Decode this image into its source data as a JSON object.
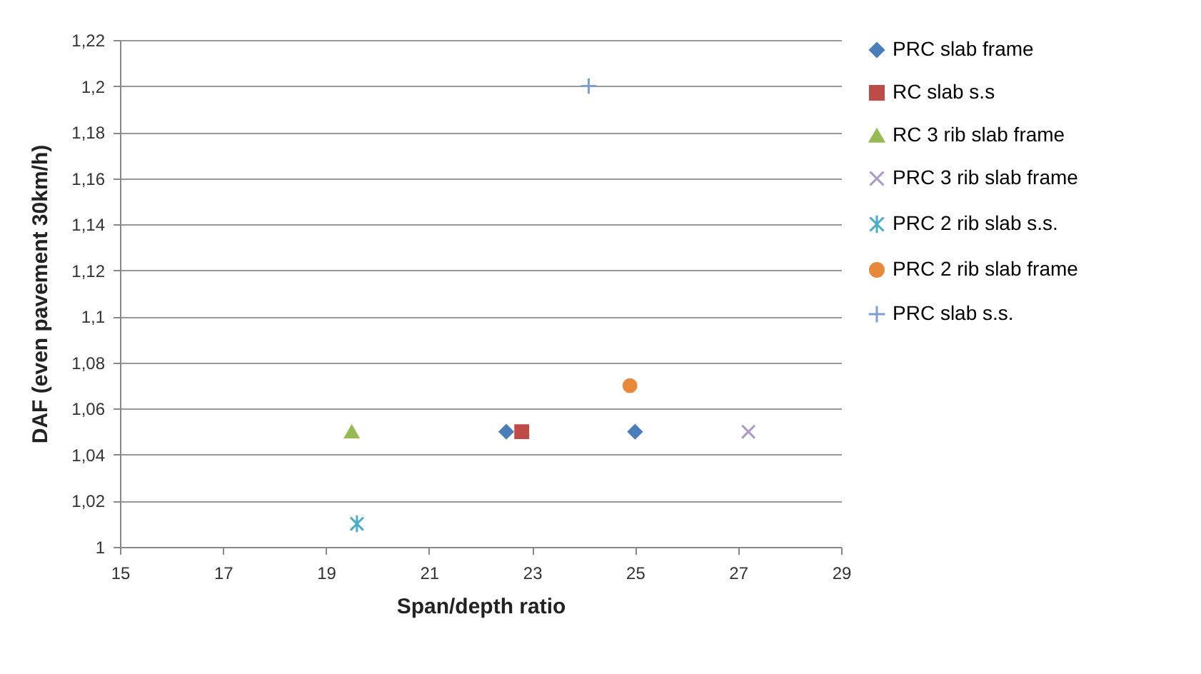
{
  "chart_data": {
    "type": "scatter",
    "xlabel": "Span/depth ratio",
    "ylabel": "DAF (even pavement 30km/h)",
    "xlim": [
      15,
      29
    ],
    "xticks": [
      15,
      17,
      19,
      21,
      23,
      25,
      27,
      29
    ],
    "ylim": [
      1,
      1.22
    ],
    "yticks": [
      1,
      {
        "value": 1.02,
        "label": "1,02"
      },
      {
        "value": 1.04,
        "label": "1,04"
      },
      {
        "value": 1.06,
        "label": "1,06"
      },
      {
        "value": 1.08,
        "label": "1,08"
      },
      {
        "value": 1.1,
        "label": "1,1"
      },
      {
        "value": 1.12,
        "label": "1,12"
      },
      {
        "value": 1.14,
        "label": "1,14"
      },
      {
        "value": 1.16,
        "label": "1,16"
      },
      {
        "value": 1.18,
        "label": "1,18"
      },
      {
        "value": 1.2,
        "label": "1,2"
      },
      {
        "value": 1.22,
        "label": "1,22"
      }
    ],
    "grid": "y",
    "legend": "right",
    "series": [
      {
        "name": "PRC slab frame",
        "color": "#4a7ebb",
        "marker": "diamond",
        "x": [
          22.5,
          25
        ],
        "values": [
          1.05,
          1.05
        ]
      },
      {
        "name": "RC slab s.s",
        "color": "#be4b48",
        "marker": "square",
        "x": [
          22.8
        ],
        "values": [
          1.05
        ]
      },
      {
        "name": "RC 3 rib slab frame",
        "color": "#98b954",
        "marker": "triangle",
        "x": [
          19.5
        ],
        "values": [
          1.05
        ]
      },
      {
        "name": "PRC 3 rib slab frame",
        "color": "#a99bc6",
        "marker": "x",
        "x": [
          27.2
        ],
        "values": [
          1.05
        ]
      },
      {
        "name": "PRC 2 rib slab s.s.",
        "color": "#4bacc6",
        "x": [
          19.6
        ],
        "values": [
          1.01
        ]
      },
      {
        "name": "PRC 2 rib slab frame",
        "color": "#e8883a",
        "marker": "circle",
        "x": [
          24.9
        ],
        "values": [
          1.07
        ]
      },
      {
        "name": "PRC slab s.s.",
        "color": "#7f9fd0",
        "marker": "cross",
        "x": [
          24.1
        ],
        "values": [
          1.2
        ]
      }
    ]
  }
}
